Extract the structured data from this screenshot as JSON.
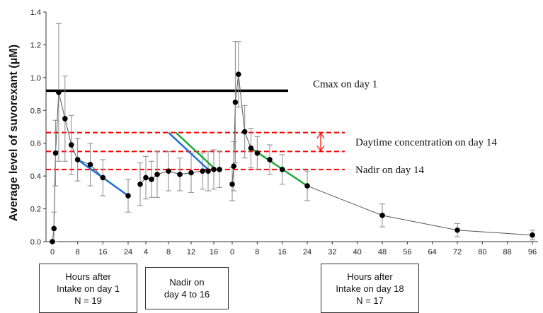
{
  "chart_data": {
    "type": "line",
    "ylabel": "Average level of suvorexant (μM)",
    "ylim": [
      0,
      1.4
    ],
    "yticks": [
      "0.0",
      "0.2",
      "0.4",
      "0.6",
      "0.8",
      "1.0",
      "1.2",
      "1.4"
    ],
    "grid": false,
    "segments": [
      {
        "name": "Hours after Intake on day 1",
        "xticks": [
          "0",
          "8",
          "16",
          "24"
        ],
        "xlim": [
          0,
          24
        ],
        "x": [
          0,
          0.5,
          1,
          2,
          4,
          6,
          8,
          12,
          16,
          24
        ],
        "y": [
          0.0,
          0.08,
          0.54,
          0.91,
          0.75,
          0.59,
          0.5,
          0.47,
          0.39,
          0.28
        ],
        "err": [
          0.0,
          0.1,
          0.2,
          0.42,
          0.26,
          0.18,
          0.13,
          0.13,
          0.11,
          0.1
        ]
      },
      {
        "name": "Nadir on day 4 to 16",
        "xticks": [
          "4",
          "8",
          "12",
          "16"
        ],
        "xlim": [
          4,
          16
        ],
        "x": [
          3,
          4,
          5,
          6,
          8,
          10,
          12,
          14,
          15,
          16,
          17
        ],
        "y": [
          0.35,
          0.39,
          0.38,
          0.41,
          0.43,
          0.41,
          0.42,
          0.43,
          0.43,
          0.44,
          0.44
        ],
        "err": [
          0.13,
          0.13,
          0.11,
          0.14,
          0.12,
          0.1,
          0.12,
          0.11,
          0.12,
          0.12,
          0.11
        ]
      },
      {
        "name": "Hours after Intake on day 18",
        "xticks": [
          "0",
          "8",
          "16",
          "24",
          "32",
          "40",
          "48",
          "56",
          "64",
          "72",
          "80",
          "88",
          "96"
        ],
        "xlim": [
          0,
          96
        ],
        "x": [
          0,
          0.5,
          1,
          2,
          4,
          6,
          8,
          12,
          16,
          24,
          48,
          72,
          96
        ],
        "y": [
          0.35,
          0.46,
          0.85,
          1.02,
          0.67,
          0.57,
          0.54,
          0.5,
          0.44,
          0.34,
          0.16,
          0.07,
          0.04
        ],
        "err": [
          0.1,
          0.15,
          0.37,
          0.2,
          0.16,
          0.12,
          0.1,
          0.09,
          0.09,
          0.09,
          0.07,
          0.04,
          0.03
        ]
      }
    ],
    "annotations": [
      {
        "label": "Cmax on day 1",
        "y": 0.92,
        "color": "#000000"
      },
      {
        "label": "Daytime concentration on day 14",
        "y_range": [
          0.55,
          0.665
        ],
        "color": "#ff0000"
      },
      {
        "label": "Nadir on day 14",
        "y": 0.44,
        "color": "#ff0000"
      }
    ],
    "colors": {
      "marker": "#000000",
      "connector": "#555555",
      "error_bar": "#8a8a8a",
      "blue_line": "#1f6fd1",
      "green_line": "#1fa83a",
      "cmax_line": "#000000",
      "reference": "#ff0000"
    }
  },
  "boxes": {
    "day1": {
      "line1": "Hours after",
      "line2": "Intake on day 1",
      "line3": "N = 19"
    },
    "nadir": {
      "line1": "Nadir on",
      "line2": "day 4 to 16"
    },
    "day18": {
      "line1": "Hours after",
      "line2": "Intake on day 18",
      "line3": "N = 17"
    }
  }
}
